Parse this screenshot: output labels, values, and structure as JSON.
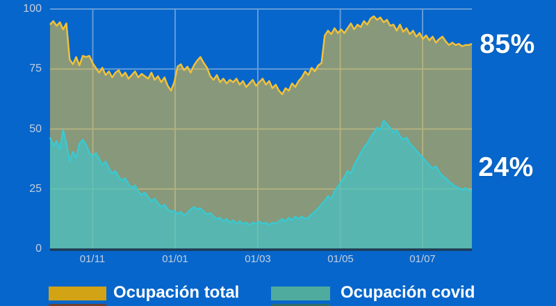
{
  "colors": {
    "background": "#0766cb",
    "grid": "rgba(235,235,235,0.4)",
    "axis_line": "#1f3a55",
    "tick_label": "#c3cfdc",
    "value_label": "#ffffff",
    "legend_shadow_total": "#6f4030",
    "legend_shadow_covid": "#2c6f68"
  },
  "side_labels": {
    "total": "85%",
    "covid": "24%"
  },
  "chart_data": {
    "type": "area",
    "title": "",
    "grid": true,
    "legend_position": "bottom",
    "x_axis": {
      "tick_labels": [
        "01/11",
        "01/01",
        "01/03",
        "01/05",
        "01/07"
      ],
      "tick_positions": [
        0.1013,
        0.2965,
        0.4926,
        0.688,
        0.883
      ],
      "range_note": "daily series, late Sept 2020 to early Aug 2021"
    },
    "y_axis": {
      "ticks": [
        0,
        25,
        50,
        75,
        100
      ],
      "min": 0,
      "max": 100
    },
    "series": [
      {
        "name": "Ocupación total",
        "line_color": "#f2c138",
        "fill_color": "rgba(242,193,56,0.55)",
        "legend_color": "#d2a315",
        "current_label": "85%",
        "values": [
          93.5,
          95,
          93,
          94.5,
          91.5,
          94,
          79,
          77,
          80,
          76.5,
          80.5,
          80,
          80.5,
          77.5,
          75.5,
          73.5,
          75.5,
          72.5,
          74,
          71.5,
          73.5,
          74.5,
          72,
          73.5,
          71,
          72.5,
          74,
          71.5,
          73,
          72,
          71,
          73.5,
          70.5,
          72,
          69.5,
          71.5,
          68,
          66,
          69.5,
          76,
          77,
          74.5,
          76,
          73.5,
          76.5,
          78.5,
          80,
          77.5,
          75.5,
          72,
          70.5,
          72.5,
          69.5,
          71,
          69,
          70.5,
          69.5,
          71,
          68.5,
          70,
          67.5,
          69,
          70.5,
          68,
          69.5,
          71,
          68.5,
          70,
          67,
          68.5,
          66,
          64.5,
          67,
          66,
          69,
          67.5,
          70,
          71.5,
          74,
          72.5,
          75.5,
          74,
          76.5,
          77.5,
          89,
          91,
          89.5,
          92,
          90,
          91.5,
          90,
          92,
          94,
          91.5,
          93.5,
          92.5,
          95,
          93.5,
          96,
          97,
          95.5,
          96.5,
          94.5,
          95.5,
          93,
          93.5,
          91,
          93.5,
          90.5,
          92,
          89.5,
          91,
          88.5,
          90,
          87.5,
          89,
          87,
          88.5,
          86,
          87.5,
          88.5,
          86.5,
          85,
          86,
          85,
          85.5,
          84.5,
          85,
          85,
          85.5
        ]
      },
      {
        "name": "Ocupación covid",
        "line_color": "#3bc8d0",
        "fill_color": "rgba(59,200,206,0.63)",
        "legend_color": "#4fab9e",
        "current_label": "24%",
        "values": [
          46.5,
          43,
          45,
          41.5,
          49.5,
          44,
          36.5,
          40.5,
          38,
          44,
          45.5,
          43.5,
          40,
          38.5,
          40,
          37.5,
          35,
          36.5,
          33.5,
          31.5,
          32.5,
          30,
          28.5,
          29.5,
          27,
          25.5,
          26.5,
          24,
          22.5,
          23.5,
          21.5,
          20,
          21,
          19,
          17.5,
          18.5,
          16.5,
          15.5,
          16,
          14.5,
          15.5,
          14,
          15,
          16.5,
          17.5,
          16.5,
          17,
          15.5,
          14.5,
          15,
          13.5,
          12.5,
          13,
          11.5,
          12.5,
          11,
          12,
          10.5,
          11.5,
          10.5,
          11,
          10,
          11,
          10.5,
          11.5,
          10.5,
          11,
          10,
          11,
          10.5,
          11.5,
          12.5,
          11.5,
          13,
          12,
          13.5,
          12.5,
          13.5,
          12.5,
          13,
          14.5,
          15.5,
          17,
          18.5,
          20,
          22,
          21,
          24,
          26,
          28,
          30,
          32.5,
          31.5,
          35,
          37.5,
          40,
          42.5,
          44,
          46.5,
          48.5,
          50.5,
          49.5,
          53.5,
          52,
          50.5,
          48.5,
          49.5,
          47,
          45.5,
          46.5,
          44,
          42.5,
          41,
          39.5,
          38,
          36.5,
          35,
          33.5,
          34.5,
          32,
          30.5,
          29.5,
          28,
          27,
          26,
          25.5,
          24.5,
          25.5,
          24.5,
          24
        ]
      }
    ]
  }
}
